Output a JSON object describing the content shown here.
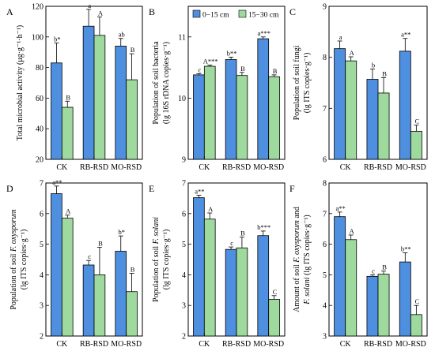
{
  "colors": {
    "depth1": "#4f8fe0",
    "depth2": "#9ed99e",
    "axis": "#000000"
  },
  "chart_data": [
    {
      "type": "bar",
      "panel": "A",
      "ylabel_lines": [
        "Total microbial activity (μg·g⁻¹·h⁻¹)"
      ],
      "ylim": [
        20,
        120
      ],
      "yticks": [
        20,
        40,
        60,
        80,
        100,
        120
      ],
      "categories": [
        "CK",
        "RB-RSD",
        "MO-RSD"
      ],
      "series": [
        {
          "name": "0−15 cm",
          "values": [
            83,
            107,
            94
          ],
          "errors": [
            13,
            11,
            5
          ],
          "sig": [
            "b*",
            "a",
            "ab"
          ]
        },
        {
          "name": "15−30 cm",
          "values": [
            54,
            101,
            72
          ],
          "errors": [
            4,
            12,
            17
          ],
          "sig": [
            "B",
            "A",
            "B"
          ]
        }
      ]
    },
    {
      "type": "bar",
      "panel": "B",
      "ylabel_lines": [
        "Population of soil bacteria",
        "(lg 16S rDNA copies·g⁻¹)"
      ],
      "ylim": [
        9,
        11.5
      ],
      "yticks": [
        9,
        10,
        11
      ],
      "categories": [
        "CK",
        "RB-RSD",
        "MO-RSD"
      ],
      "legend": [
        "0−15 cm",
        "15−30 cm"
      ],
      "series": [
        {
          "name": "0−15 cm",
          "values": [
            10.38,
            10.63,
            10.97
          ],
          "errors": [
            0.02,
            0.04,
            0.03
          ],
          "sig": [
            "c",
            "b**",
            "a***"
          ]
        },
        {
          "name": "15−30 cm",
          "values": [
            10.52,
            10.37,
            10.35
          ],
          "errors": [
            0.02,
            0.05,
            0.03
          ],
          "sig": [
            "A***",
            "B",
            "B"
          ]
        }
      ]
    },
    {
      "type": "bar",
      "panel": "C",
      "ylabel_lines": [
        "Population of soil fungi",
        "(lg ITS copies·g⁻¹)"
      ],
      "ylim": [
        6,
        9
      ],
      "yticks": [
        6,
        7,
        8,
        9
      ],
      "categories": [
        "CK",
        "RB-RSD",
        "MO-RSD"
      ],
      "series": [
        {
          "name": "0−15 cm",
          "values": [
            8.17,
            7.57,
            8.12
          ],
          "errors": [
            0.15,
            0.2,
            0.25
          ],
          "sig": [
            "a",
            "b",
            "a**"
          ]
        },
        {
          "name": "15−30 cm",
          "values": [
            7.93,
            7.3,
            6.55
          ],
          "errors": [
            0.08,
            0.3,
            0.12
          ],
          "sig": [
            "A",
            "B",
            "C"
          ]
        }
      ]
    },
    {
      "type": "bar",
      "panel": "D",
      "ylabel_lines": [
        "Population of soil F. oxysporum",
        "(lg ITS copies·g⁻¹)"
      ],
      "ylim": [
        2,
        7
      ],
      "yticks": [
        2,
        3,
        4,
        5,
        6,
        7
      ],
      "categories": [
        "CK",
        "RB-RSD",
        "MO-RSD"
      ],
      "series": [
        {
          "name": "0−15 cm",
          "values": [
            6.65,
            4.32,
            4.77
          ],
          "errors": [
            0.25,
            0.15,
            0.5
          ],
          "sig": [
            "a**",
            "c",
            "b*"
          ]
        },
        {
          "name": "15−30 cm",
          "values": [
            5.85,
            4.0,
            3.45
          ],
          "errors": [
            0.1,
            0.9,
            0.6
          ],
          "sig": [
            "A",
            "B",
            "B"
          ]
        }
      ]
    },
    {
      "type": "bar",
      "panel": "E",
      "ylabel_lines": [
        "Population of soil F. solani",
        "(lg ITS copies·g⁻¹)"
      ],
      "ylim": [
        2,
        7
      ],
      "yticks": [
        2,
        3,
        4,
        5,
        6,
        7
      ],
      "categories": [
        "CK",
        "RB-RSD",
        "MO-RSD"
      ],
      "series": [
        {
          "name": "0−15 cm",
          "values": [
            6.52,
            4.83,
            5.28
          ],
          "errors": [
            0.08,
            0.08,
            0.15
          ],
          "sig": [
            "a**",
            "c",
            "b***"
          ]
        },
        {
          "name": "15−30 cm",
          "values": [
            5.82,
            4.88,
            3.2
          ],
          "errors": [
            0.2,
            0.35,
            0.12
          ],
          "sig": [
            "A",
            "B",
            "C"
          ]
        }
      ]
    },
    {
      "type": "bar",
      "panel": "F",
      "ylabel_lines": [
        "Amount of soil F. oxysporum and",
        "F. solani (lg ITS copies·g⁻¹)"
      ],
      "ylim": [
        3,
        8
      ],
      "yticks": [
        3,
        4,
        5,
        6,
        7,
        8
      ],
      "categories": [
        "CK",
        "RB-RSD",
        "MO-RSD"
      ],
      "series": [
        {
          "name": "0−15 cm",
          "values": [
            6.9,
            4.95,
            5.42
          ],
          "errors": [
            0.15,
            0.05,
            0.3
          ],
          "sig": [
            "a**",
            "c",
            "b**"
          ]
        },
        {
          "name": "15−30 cm",
          "values": [
            6.15,
            5.02,
            3.7
          ],
          "errors": [
            0.15,
            0.1,
            0.3
          ],
          "sig": [
            "A",
            "B",
            "C"
          ]
        }
      ]
    }
  ]
}
